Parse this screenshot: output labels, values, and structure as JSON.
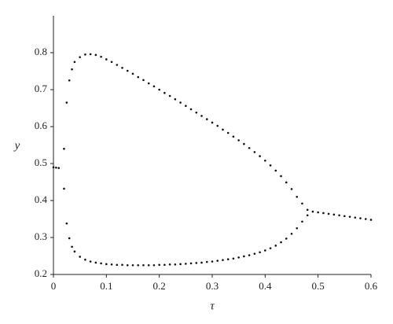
{
  "chart_data": {
    "type": "scatter",
    "x_label": "τ",
    "y_label": "y",
    "xlim": [
      0,
      0.6
    ],
    "ylim": [
      0.2,
      0.9
    ],
    "xticks": [
      0,
      0.1,
      0.2,
      0.3,
      0.4,
      0.5,
      0.6
    ],
    "yticks": [
      0.2,
      0.3,
      0.4,
      0.5,
      0.6,
      0.7,
      0.8
    ],
    "color": "#111111",
    "x": [
      0,
      0.005,
      0.01,
      0.02,
      0.02,
      0.025,
      0.025,
      0.03,
      0.03,
      0.035,
      0.035,
      0.04,
      0.05,
      0.06,
      0.07,
      0.08,
      0.09,
      0.1,
      0.11,
      0.12,
      0.13,
      0.14,
      0.15,
      0.16,
      0.17,
      0.18,
      0.19,
      0.2,
      0.21,
      0.22,
      0.23,
      0.24,
      0.25,
      0.26,
      0.27,
      0.28,
      0.29,
      0.3,
      0.31,
      0.32,
      0.33,
      0.34,
      0.35,
      0.36,
      0.37,
      0.38,
      0.39,
      0.4,
      0.41,
      0.42,
      0.43,
      0.44,
      0.45,
      0.46,
      0.47,
      0.48,
      0.04,
      0.05,
      0.06,
      0.07,
      0.08,
      0.09,
      0.1,
      0.11,
      0.12,
      0.13,
      0.14,
      0.15,
      0.16,
      0.17,
      0.18,
      0.19,
      0.2,
      0.21,
      0.22,
      0.23,
      0.24,
      0.25,
      0.26,
      0.27,
      0.28,
      0.29,
      0.3,
      0.31,
      0.32,
      0.33,
      0.34,
      0.35,
      0.36,
      0.37,
      0.38,
      0.39,
      0.4,
      0.41,
      0.42,
      0.43,
      0.44,
      0.45,
      0.46,
      0.47,
      0.48,
      0.49,
      0.5,
      0.51,
      0.52,
      0.53,
      0.54,
      0.55,
      0.56,
      0.57,
      0.58,
      0.59,
      0.6
    ],
    "values": [
      0.49,
      0.489,
      0.488,
      0.54,
      0.432,
      0.665,
      0.338,
      0.725,
      0.298,
      0.755,
      0.275,
      0.775,
      0.788,
      0.795,
      0.796,
      0.794,
      0.789,
      0.782,
      0.775,
      0.767,
      0.759,
      0.751,
      0.743,
      0.734,
      0.726,
      0.717,
      0.709,
      0.7,
      0.691,
      0.683,
      0.674,
      0.665,
      0.656,
      0.647,
      0.638,
      0.629,
      0.62,
      0.611,
      0.602,
      0.592,
      0.583,
      0.573,
      0.563,
      0.553,
      0.542,
      0.531,
      0.52,
      0.508,
      0.495,
      0.481,
      0.466,
      0.449,
      0.431,
      0.41,
      0.392,
      0.375,
      0.262,
      0.248,
      0.24,
      0.235,
      0.232,
      0.23,
      0.228,
      0.227,
      0.226,
      0.226,
      0.225,
      0.225,
      0.225,
      0.225,
      0.225,
      0.225,
      0.226,
      0.226,
      0.227,
      0.227,
      0.228,
      0.229,
      0.23,
      0.231,
      0.232,
      0.234,
      0.235,
      0.237,
      0.239,
      0.241,
      0.243,
      0.246,
      0.249,
      0.252,
      0.256,
      0.26,
      0.265,
      0.271,
      0.278,
      0.287,
      0.297,
      0.31,
      0.325,
      0.343,
      0.36,
      0.37,
      0.368,
      0.366,
      0.364,
      0.362,
      0.36,
      0.358,
      0.356,
      0.354,
      0.352,
      0.35,
      0.348
    ]
  }
}
